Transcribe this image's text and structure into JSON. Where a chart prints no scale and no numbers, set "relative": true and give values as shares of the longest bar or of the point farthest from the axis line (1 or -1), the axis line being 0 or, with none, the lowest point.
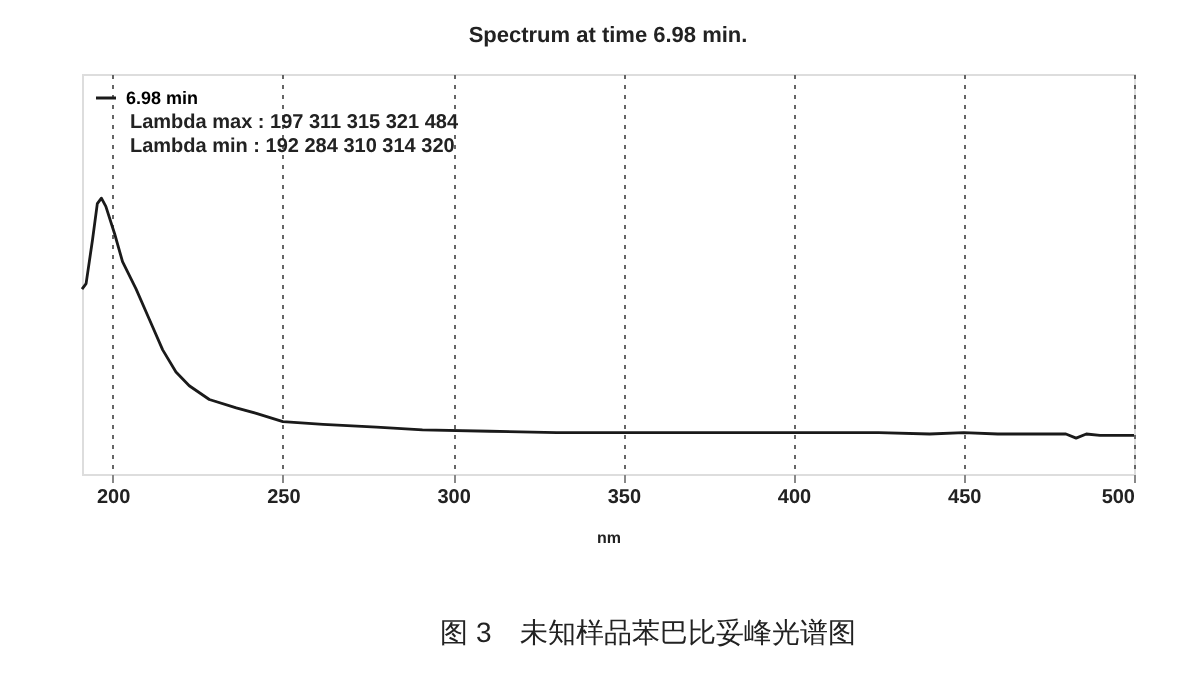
{
  "chart_data": {
    "type": "line",
    "title": "Spectrum at time 6.98 min.",
    "xlabel": "nm",
    "relative": true,
    "x": [
      191,
      192.2,
      194.1,
      195.5,
      196.7,
      198,
      200.6,
      202.9,
      206.9,
      210.8,
      214.7,
      218.6,
      222.5,
      228.4,
      236.3,
      242.2,
      250,
      261.8,
      277.5,
      291,
      310.8,
      330.4,
      350,
      375,
      400,
      425,
      440,
      450,
      460,
      470,
      480,
      483,
      486,
      490,
      500
    ],
    "series": [
      {
        "name": "6.98 min",
        "color": "#1a1a1a",
        "values": [
          0.67,
          0.69,
          0.85,
          0.98,
          1.0,
          0.97,
          0.87,
          0.77,
          0.67,
          0.56,
          0.45,
          0.37,
          0.32,
          0.27,
          0.24,
          0.22,
          0.19,
          0.18,
          0.17,
          0.16,
          0.155,
          0.15,
          0.15,
          0.15,
          0.15,
          0.15,
          0.145,
          0.15,
          0.145,
          0.145,
          0.145,
          0.13,
          0.145,
          0.14,
          0.14
        ]
      }
    ],
    "xlim": [
      191,
      500
    ],
    "xticks": [
      200,
      250,
      300,
      350,
      400,
      450,
      500
    ],
    "grid": "x",
    "legend": "top left",
    "line_style": "solid",
    "marker": "none",
    "annotations": [
      "Lambda max :   197   311   315   321   484",
      "Lambda min :   192   284   310   314   320",
      "图 3　未知样品苯巴比妥峰光谱图"
    ]
  }
}
